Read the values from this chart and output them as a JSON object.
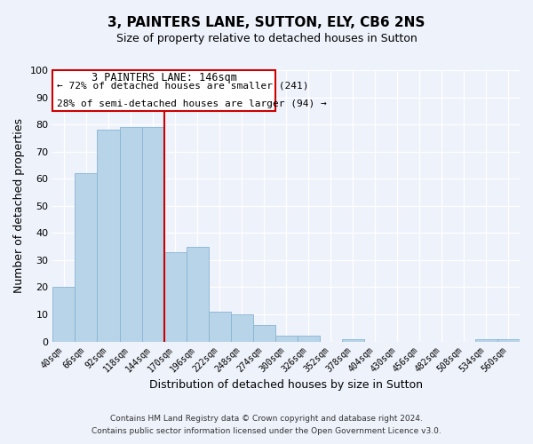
{
  "title": "3, PAINTERS LANE, SUTTON, ELY, CB6 2NS",
  "subtitle": "Size of property relative to detached houses in Sutton",
  "xlabel": "Distribution of detached houses by size in Sutton",
  "ylabel": "Number of detached properties",
  "bar_color": "#b8d4e8",
  "bar_edge_color": "#88b4d4",
  "background_color": "#eef2fb",
  "grid_color": "#ffffff",
  "annotation_box_color": "#ffffff",
  "annotation_box_edge": "#cc0000",
  "vline_color": "#cc0000",
  "annotation_title": "3 PAINTERS LANE: 146sqm",
  "annotation_line1": "← 72% of detached houses are smaller (241)",
  "annotation_line2": "28% of semi-detached houses are larger (94) →",
  "categories": [
    "40sqm",
    "66sqm",
    "92sqm",
    "118sqm",
    "144sqm",
    "170sqm",
    "196sqm",
    "222sqm",
    "248sqm",
    "274sqm",
    "300sqm",
    "326sqm",
    "352sqm",
    "378sqm",
    "404sqm",
    "430sqm",
    "456sqm",
    "482sqm",
    "508sqm",
    "534sqm",
    "560sqm"
  ],
  "values": [
    20,
    62,
    78,
    79,
    79,
    33,
    35,
    11,
    10,
    6,
    2,
    2,
    0,
    1,
    0,
    0,
    0,
    0,
    0,
    1,
    1
  ],
  "vline_after_index": 4,
  "ylim": [
    0,
    100
  ],
  "footer1": "Contains HM Land Registry data © Crown copyright and database right 2024.",
  "footer2": "Contains public sector information licensed under the Open Government Licence v3.0."
}
